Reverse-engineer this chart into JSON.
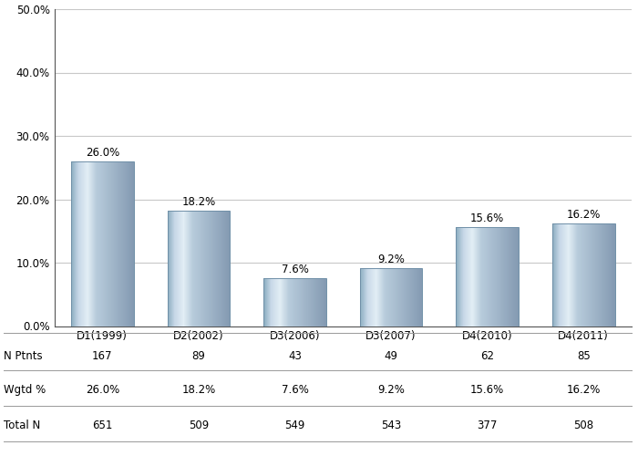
{
  "categories": [
    "D1(1999)",
    "D2(2002)",
    "D3(2006)",
    "D3(2007)",
    "D4(2010)",
    "D4(2011)"
  ],
  "values": [
    26.0,
    18.2,
    7.6,
    9.2,
    15.6,
    16.2
  ],
  "labels": [
    "26.0%",
    "18.2%",
    "7.6%",
    "9.2%",
    "15.6%",
    "16.2%"
  ],
  "n_ptnts": [
    167,
    89,
    43,
    49,
    62,
    85
  ],
  "wgtd_pct": [
    "26.0%",
    "18.2%",
    "7.6%",
    "9.2%",
    "15.6%",
    "16.2%"
  ],
  "total_n": [
    651,
    509,
    549,
    543,
    377,
    508
  ],
  "ylim": [
    0,
    50
  ],
  "yticks": [
    0,
    10,
    20,
    30,
    40,
    50
  ],
  "ytick_labels": [
    "0.0%",
    "10.0%",
    "20.0%",
    "30.0%",
    "40.0%",
    "50.0%"
  ],
  "background_color": "#ffffff",
  "grid_color": "#c8c8c8",
  "row_labels": [
    "N Ptnts",
    "Wgtd %",
    "Total N"
  ],
  "tick_fontsize": 8.5,
  "bar_label_fontsize": 8.5,
  "table_fontsize": 8.5
}
